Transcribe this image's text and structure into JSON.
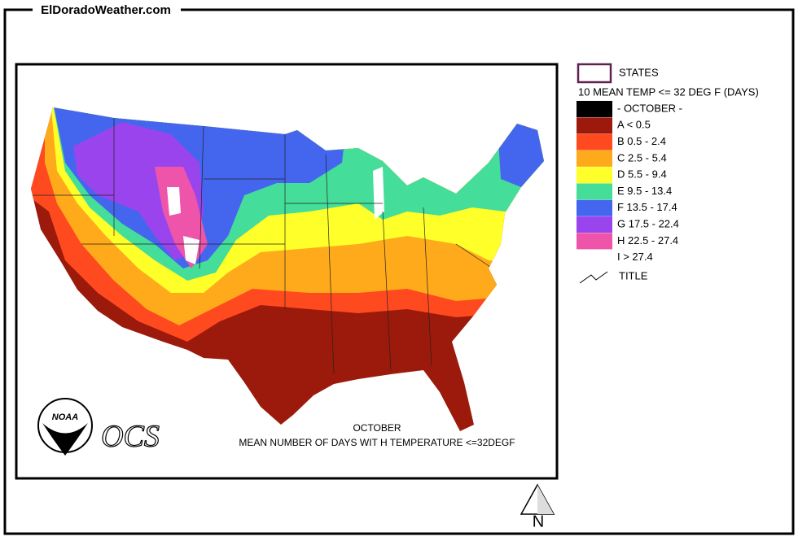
{
  "header": {
    "title": "ElDoradoWeather.com"
  },
  "map": {
    "caption_month": "OCTOBER",
    "caption": "MEAN NUMBER OF DAYS WIT H TEMPERATURE <=32DEGF",
    "logo_text": "NOAA",
    "ocs": "OCS"
  },
  "legend": {
    "states_label": "STATES",
    "layer_title": "10 MEAN TEMP <= 32 DEG F (DAYS)",
    "classes": [
      {
        "label": "- OCTOBER -",
        "color": "#000000"
      },
      {
        "label": "A < 0.5",
        "color": "#9b1a0c"
      },
      {
        "label": "B 0.5 - 2.4",
        "color": "#ff4a20"
      },
      {
        "label": "C 2.5 - 5.4",
        "color": "#ffaa1a"
      },
      {
        "label": "D 5.5 - 9.4",
        "color": "#ffff2a"
      },
      {
        "label": "E 9.5 - 13.4",
        "color": "#44dd99"
      },
      {
        "label": "F 13.5 - 17.4",
        "color": "#4466ee"
      },
      {
        "label": "G 17.5 - 22.4",
        "color": "#9a44ee"
      },
      {
        "label": "H 22.5 - 27.4",
        "color": "#ee55aa"
      },
      {
        "label": "I > 27.4",
        "color": "#ffffff"
      }
    ],
    "title_label": "TITLE"
  },
  "north": "N"
}
